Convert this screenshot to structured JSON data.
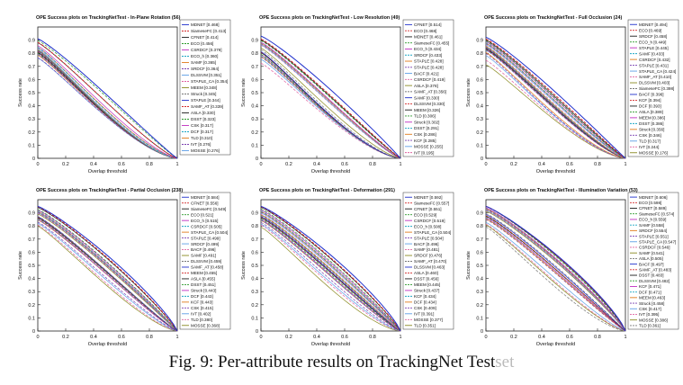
{
  "caption": {
    "main": "Fig. 9: Per-attribute results on TrackingNet Test",
    "tail": "set"
  },
  "colors": {
    "blue": "#1f2fcc",
    "red": "#d42a2a",
    "black": "#1a1a1a",
    "green": "#2b9a2b",
    "magenta": "#c02dc0",
    "cyan": "#1aa6c4",
    "orange": "#e07a1a",
    "purple": "#7a3fb0",
    "lightblue": "#5c9ee6",
    "pink": "#e060a0",
    "olive": "#8a8a20",
    "gray": "#777777"
  },
  "chart_data": [
    {
      "type": "line",
      "title": "OPE Success plots on TrackingNetTest - In-Plane Rotation (56)",
      "xlabel": "Overlap threshold",
      "ylabel": "Success rate",
      "xlim": [
        0,
        1
      ],
      "ylim": [
        0,
        1
      ],
      "xticks": [
        "0",
        "0.2",
        "0.4",
        "0.6",
        "0.8",
        "1"
      ],
      "yticks": [
        "0",
        "0.1",
        "0.2",
        "0.3",
        "0.4",
        "0.5",
        "0.6",
        "0.7",
        "0.8",
        "0.9"
      ],
      "legend": [
        "MDNET [0.468]",
        "SiameseFC [0.413]",
        "CFNET [0.414]",
        "ECO [0.456]",
        "CSRDCF [0.379]",
        "ECO_h [0.360]",
        "SAMF [0.365]",
        "SRDCF [0.364]",
        "DLSSVM [0.351]",
        "STAPLE_CA [0.354]",
        "MEEM [0.348]",
        "Struck [0.345]",
        "STAPLE [0.344]",
        "SAMF_AT [0.339]",
        "ASLA [0.330]",
        "DSST [0.323]",
        "CSK [0.317]",
        "DCF [0.317]",
        "TLD [0.310]",
        "IVT [0.276]",
        "MOSSE [0.276]"
      ]
    },
    {
      "type": "line",
      "title": "OPE Success plots on TrackingNetTest - Low Resolution (49)",
      "xlabel": "Overlap threshold",
      "ylabel": "Success rate",
      "xlim": [
        0,
        1
      ],
      "ylim": [
        0,
        1
      ],
      "xticks": [
        "0",
        "0.2",
        "0.4",
        "0.6",
        "0.8",
        "1"
      ],
      "yticks": [
        "0",
        "0.1",
        "0.2",
        "0.3",
        "0.4",
        "0.5",
        "0.6",
        "0.7",
        "0.8",
        "0.9"
      ],
      "legend": [
        "CFNET [0.514]",
        "ECO [0.468]",
        "MDNET [0.461]",
        "SiameseFC [0.455]",
        "ECO_h [0.434]",
        "SRDCF [0.433]",
        "STAPLE [0.428]",
        "STAPLE [0.428]",
        "BACF [0.421]",
        "CSRDCF [0.419]",
        "ASLA [0.378]",
        "SAMF_AT [0.356]",
        "SAMF [0.330]",
        "DLSSVM [0.330]",
        "MEEM [0.326]",
        "TLD [0.306]",
        "Struck [0.302]",
        "DSST [0.291]",
        "CSK [0.286]",
        "KCF [0.285]",
        "MOSSE [0.255]",
        "IVT [0.195]"
      ]
    },
    {
      "type": "line",
      "title": "OPE Success plots on TrackingNetTest - Full Occlusion (24)",
      "xlabel": "Overlap threshold",
      "ylabel": "Success rate",
      "xlim": [
        0,
        1
      ],
      "ylim": [
        0,
        1
      ],
      "xticks": [
        "0",
        "0.2",
        "0.4",
        "0.6",
        "0.8",
        "1"
      ],
      "yticks": [
        "0",
        "0.1",
        "0.2",
        "0.3",
        "0.4",
        "0.5",
        "0.6",
        "0.7",
        "0.8",
        "0.9"
      ],
      "legend": [
        "MDNET [0.494]",
        "ECO [0.469]",
        "SRDCF [0.458]",
        "ECO_h [0.449]",
        "STAPLE [0.445]",
        "SAMF [0.433]",
        "CSRDCF [0.432]",
        "STAPLE [0.431]",
        "STAPLE_CA [0.424]",
        "SAMF_AT [0.410]",
        "DLSSVM [0.403]",
        "SiameseFC [0.398]",
        "BACF [0.396]",
        "KCF [0.394]",
        "DCF [0.393]",
        "ASLA [0.389]",
        "MEEM [0.386]",
        "DSST [0.386]",
        "Struck [0.356]",
        "CSK [0.346]",
        "TLD [0.317]",
        "IVT [0.244]",
        "MOSSE [0.176]"
      ]
    },
    {
      "type": "line",
      "title": "OPE Success plots on TrackingNetTest - Partial Occlusion (238)",
      "xlabel": "Overlap threshold",
      "ylabel": "Success rate",
      "xlim": [
        0,
        1
      ],
      "ylim": [
        0,
        1
      ],
      "xticks": [
        "0",
        "0.2",
        "0.4",
        "0.6",
        "0.8",
        "1"
      ],
      "yticks": [
        "0",
        "0.1",
        "0.2",
        "0.3",
        "0.4",
        "0.5",
        "0.6",
        "0.7",
        "0.8",
        "0.9"
      ],
      "legend": [
        "MDNET [0.584]",
        "CFNET [0.556]",
        "SiameseFC [0.549]",
        "ECO [0.521]",
        "ECO_h [0.515]",
        "CSRDCF [0.505]",
        "STAPLE_CA [0.504]",
        "STAPLE [0.499]",
        "SRDCF [0.499]",
        "BACF [0.496]",
        "SAMF [0.491]",
        "DLSSVM [0.459]",
        "SAMF_AT [0.458]",
        "MEEM [0.455]",
        "ASLA [0.455]",
        "DSST [0.451]",
        "Struck [0.443]",
        "DCF [0.443]",
        "KCF [0.443]",
        "CSK [0.415]",
        "IVT [0.402]",
        "TLD [0.380]",
        "MOSSE [0.368]"
      ]
    },
    {
      "type": "line",
      "title": "OPE Success plots on TrackingNetTest - Deformation (291)",
      "xlabel": "Overlap threshold",
      "ylabel": "Success rate",
      "xlim": [
        0,
        1
      ],
      "ylim": [
        0,
        1
      ],
      "xticks": [
        "0",
        "0.2",
        "0.4",
        "0.6",
        "0.8",
        "1"
      ],
      "yticks": [
        "0",
        "0.1",
        "0.2",
        "0.3",
        "0.4",
        "0.5",
        "0.6",
        "0.7",
        "0.8",
        "0.9"
      ],
      "legend": [
        "MDNET [0.592]",
        "SiameseFC [0.557]",
        "CFNET [0.551]",
        "ECO [0.529]",
        "CSRDCF [0.519]",
        "ECO_h [0.508]",
        "STAPLE_CA [0.504]",
        "STAPLE [0.504]",
        "BACF [0.496]",
        "SAMF [0.481]",
        "SRDCF [0.476]",
        "SAMF_AT [0.470]",
        "DLSSVM [0.463]",
        "ASLA [0.460]",
        "DSST [0.456]",
        "MEEM [0.445]",
        "Struck [0.437]",
        "KCF [0.434]",
        "DCF [0.434]",
        "CSK [0.409]",
        "IVT [0.391]",
        "MOSSE [0.377]",
        "TLD [0.351]"
      ]
    },
    {
      "type": "line",
      "title": "OPE Success plots on TrackingNetTest - Illumination Variation (53)",
      "xlabel": "Overlap threshold",
      "ylabel": "Success rate",
      "xlim": [
        0,
        1
      ],
      "ylim": [
        0,
        1
      ],
      "xticks": [
        "0",
        "0.2",
        "0.4",
        "0.6",
        "0.8",
        "1"
      ],
      "yticks": [
        "0",
        "0.1",
        "0.2",
        "0.3",
        "0.4",
        "0.5",
        "0.6",
        "0.7",
        "0.8",
        "0.9"
      ],
      "legend": [
        "MDNET [0.606]",
        "ECO [0.598]",
        "CFNET [0.589]",
        "SiameseFC [0.574]",
        "ECO_h [0.559]",
        "SAMF [0.558]",
        "SRDCF [0.554]",
        "STAPLE [0.551]",
        "STAPLE_CA [0.547]",
        "CSRDCF [0.546]",
        "SAMF [0.541]",
        "ASLA [0.505]",
        "BACF [0.497]",
        "SAMF_AT [0.483]",
        "DSST [0.483]",
        "DLSSVM [0.482]",
        "KCF [0.471]",
        "DCF [0.471]",
        "MEEM [0.463]",
        "Struck [0.458]",
        "CSK [0.417]",
        "IVT [0.395]",
        "MOSSE [0.386]",
        "TLD [0.361]"
      ]
    }
  ]
}
